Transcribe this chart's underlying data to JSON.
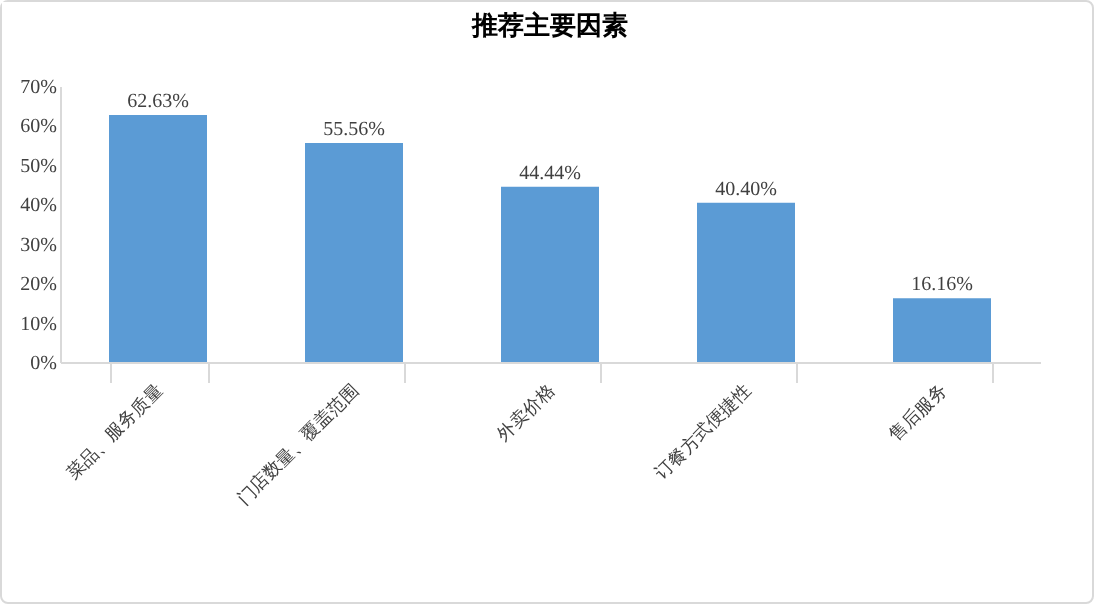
{
  "chart_data": {
    "type": "bar",
    "title": "推荐主要因素",
    "categories": [
      "菜品、服务质量",
      "门店数量、覆盖范围",
      "外卖价格",
      "订餐方式便捷性",
      "售后服务"
    ],
    "values": [
      62.63,
      55.56,
      44.44,
      40.4,
      16.16
    ],
    "value_labels": [
      "62.63%",
      "55.56%",
      "44.44%",
      "40.40%",
      "16.16%"
    ],
    "color": "#5b9bd5",
    "ylim": [
      0,
      70
    ],
    "yticks": [
      {
        "value": 0,
        "label": "0%"
      },
      {
        "value": 10,
        "label": "10%"
      },
      {
        "value": 20,
        "label": "20%"
      },
      {
        "value": 30,
        "label": "30%"
      },
      {
        "value": 40,
        "label": "40%"
      },
      {
        "value": 50,
        "label": "50%"
      },
      {
        "value": 60,
        "label": "60%"
      },
      {
        "value": 70,
        "label": "70%"
      }
    ],
    "grid": false
  }
}
